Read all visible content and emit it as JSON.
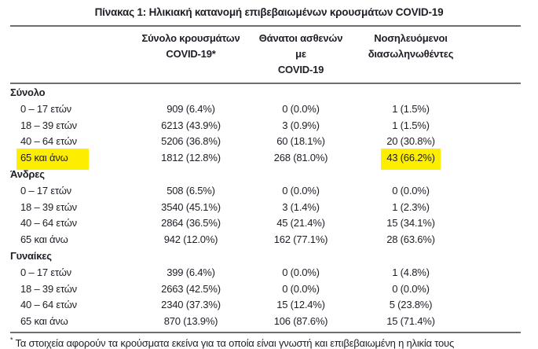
{
  "title": "Πίνακας 1: Ηλικιακή κατανομή επιβεβαιωμένων κρουσμάτων COVID-19",
  "columns": [
    {
      "line1": "Σύνολο κρουσμάτων",
      "line2": "COVID-19*"
    },
    {
      "line1": "Θάνατοι ασθενών με",
      "line2": "COVID-19"
    },
    {
      "line1": "Νοσηλευόμενοι",
      "line2": "διασωληνωθέντες"
    }
  ],
  "sections": [
    {
      "label": "Σύνολο",
      "rows": [
        {
          "label": "0 – 17 ετών",
          "cases": "909 (6.4%)",
          "deaths": "0 (0.0%)",
          "intubated": "1 (1.5%)",
          "highlight_label": false,
          "highlight_intubated": false
        },
        {
          "label": "18 – 39 ετών",
          "cases": "6213 (43.9%)",
          "deaths": "3 (0.9%)",
          "intubated": "1 (1.5%)",
          "highlight_label": false,
          "highlight_intubated": false
        },
        {
          "label": "40 – 64 ετών",
          "cases": "5206 (36.8%)",
          "deaths": "60 (18.1%)",
          "intubated": "20 (30.8%)",
          "highlight_label": false,
          "highlight_intubated": false
        },
        {
          "label": "65 και άνω",
          "cases": "1812 (12.8%)",
          "deaths": "268 (81.0%)",
          "intubated": "43 (66.2%)",
          "highlight_label": true,
          "highlight_intubated": true
        }
      ]
    },
    {
      "label": "Άνδρες",
      "rows": [
        {
          "label": "0 – 17 ετών",
          "cases": "508 (6.5%)",
          "deaths": "0 (0.0%)",
          "intubated": "0 (0.0%)",
          "highlight_label": false,
          "highlight_intubated": false
        },
        {
          "label": "18 – 39 ετών",
          "cases": "3540 (45.1%)",
          "deaths": "3 (1.4%)",
          "intubated": "1 (2.3%)",
          "highlight_label": false,
          "highlight_intubated": false
        },
        {
          "label": "40 – 64 ετών",
          "cases": "2864 (36.5%)",
          "deaths": "45 (21.4%)",
          "intubated": "15 (34.1%)",
          "highlight_label": false,
          "highlight_intubated": false
        },
        {
          "label": "65 και άνω",
          "cases": "942 (12.0%)",
          "deaths": "162 (77.1%)",
          "intubated": "28 (63.6%)",
          "highlight_label": false,
          "highlight_intubated": false
        }
      ]
    },
    {
      "label": "Γυναίκες",
      "rows": [
        {
          "label": "0 – 17 ετών",
          "cases": "399 (6.4%)",
          "deaths": "0 (0.0%)",
          "intubated": "1 (4.8%)",
          "highlight_label": false,
          "highlight_intubated": false
        },
        {
          "label": "18 – 39 ετών",
          "cases": "2663 (42.5%)",
          "deaths": "0 (0.0%)",
          "intubated": "0 (0.0%)",
          "highlight_label": false,
          "highlight_intubated": false
        },
        {
          "label": "40 – 64 ετών",
          "cases": "2340 (37.3%)",
          "deaths": "15 (12.4%)",
          "intubated": "5 (23.8%)",
          "highlight_label": false,
          "highlight_intubated": false
        },
        {
          "label": "65 και άνω",
          "cases": "870 (13.9%)",
          "deaths": "106 (87.6%)",
          "intubated": "15 (71.4%)",
          "highlight_label": false,
          "highlight_intubated": false
        }
      ]
    }
  ],
  "footnote_star": "*",
  "footnote_text": "Τα στοιχεία αφορούν τα κρούσματα εκείνα για τα οποία είναι γνωστή και επιβεβαιωμένη η ηλικία τους",
  "colors": {
    "text": "#1e1e27",
    "border": "#6e6e6e",
    "highlight": "#fdee00"
  }
}
